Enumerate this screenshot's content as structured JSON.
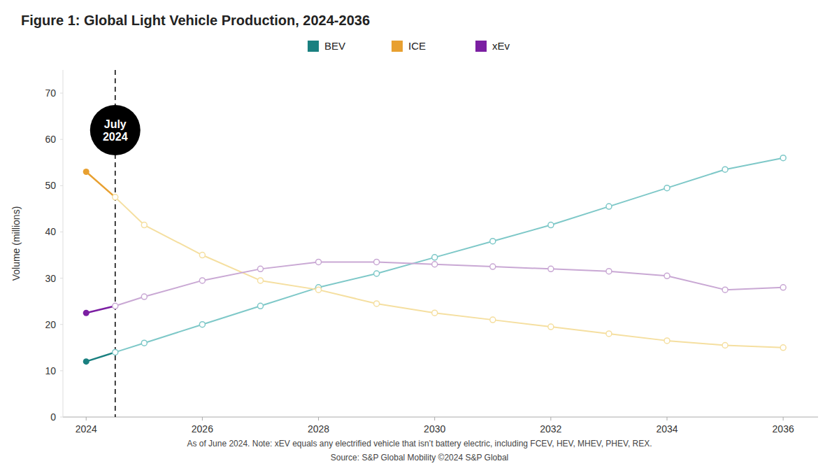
{
  "chart_data": {
    "type": "line",
    "title": "Figure 1:  Global Light Vehicle Production, 2024-2036",
    "y_label": "Volume (millions)",
    "xlim": [
      2023.6,
      2036.6
    ],
    "xticks": [
      2024,
      2026,
      2028,
      2030,
      2032,
      2034,
      2036
    ],
    "ylim": [
      0,
      75
    ],
    "yticks": [
      0,
      10,
      20,
      30,
      40,
      50,
      60,
      70
    ],
    "grid": false,
    "legend": "top",
    "series": [
      {
        "name": "BEV",
        "color": "#1a8080",
        "marker": "start-dot",
        "line_style": "solid",
        "x": [
          2024,
          2024.5
        ],
        "values": [
          12.0,
          14.0
        ]
      },
      {
        "color": "#7ec8c8",
        "marker": "open-circle",
        "line_style": "solid",
        "x": [
          2024.5,
          2025,
          2026,
          2027,
          2028,
          2029,
          2030,
          2031,
          2032,
          2033,
          2034,
          2035,
          2036
        ],
        "values": [
          14.0,
          16.0,
          20.0,
          24.0,
          28.0,
          31.0,
          34.5,
          38.0,
          41.5,
          45.5,
          49.5,
          53.5,
          56.0
        ]
      },
      {
        "name": "ICE",
        "color": "#e8a030",
        "marker": "start-dot",
        "line_style": "solid",
        "x": [
          2024,
          2024.5
        ],
        "values": [
          53.0,
          47.5
        ]
      },
      {
        "color": "#f5dfa0",
        "marker": "open-circle",
        "line_style": "solid",
        "x": [
          2024.5,
          2025,
          2026,
          2027,
          2028,
          2029,
          2030,
          2031,
          2032,
          2033,
          2034,
          2035,
          2036
        ],
        "values": [
          47.5,
          41.5,
          35.0,
          29.5,
          27.5,
          24.5,
          22.5,
          21.0,
          19.5,
          18.0,
          16.5,
          15.5,
          15.0
        ]
      },
      {
        "name": "xEv",
        "color": "#7b1fa2",
        "marker": "start-dot",
        "line_style": "solid",
        "x": [
          2024,
          2024.5
        ],
        "values": [
          22.5,
          24.0
        ]
      },
      {
        "color": "#c9a8d4",
        "marker": "open-circle",
        "line_style": "solid",
        "x": [
          2024.5,
          2025,
          2026,
          2027,
          2028,
          2029,
          2030,
          2031,
          2032,
          2033,
          2034,
          2035,
          2036
        ],
        "values": [
          24.0,
          26.0,
          29.5,
          32.0,
          33.5,
          33.5,
          33.0,
          32.5,
          32.0,
          31.5,
          30.5,
          27.5,
          28.0
        ]
      }
    ],
    "vlines": [
      {
        "x": 2024.5,
        "line_style": "dashed",
        "color": "#000000"
      }
    ],
    "annotations": [
      {
        "text": "July\n2024",
        "x": 2024.5,
        "y": 62.0,
        "color": "#000000"
      }
    ],
    "footnotes": [
      "As of June 2024. Note: xEV equals any electrified vehicle that isn’t battery electric, including FCEV, HEV, MHEV, PHEV, REX.",
      "Source: S&P Global Mobility ©2024 S&P Global"
    ]
  }
}
